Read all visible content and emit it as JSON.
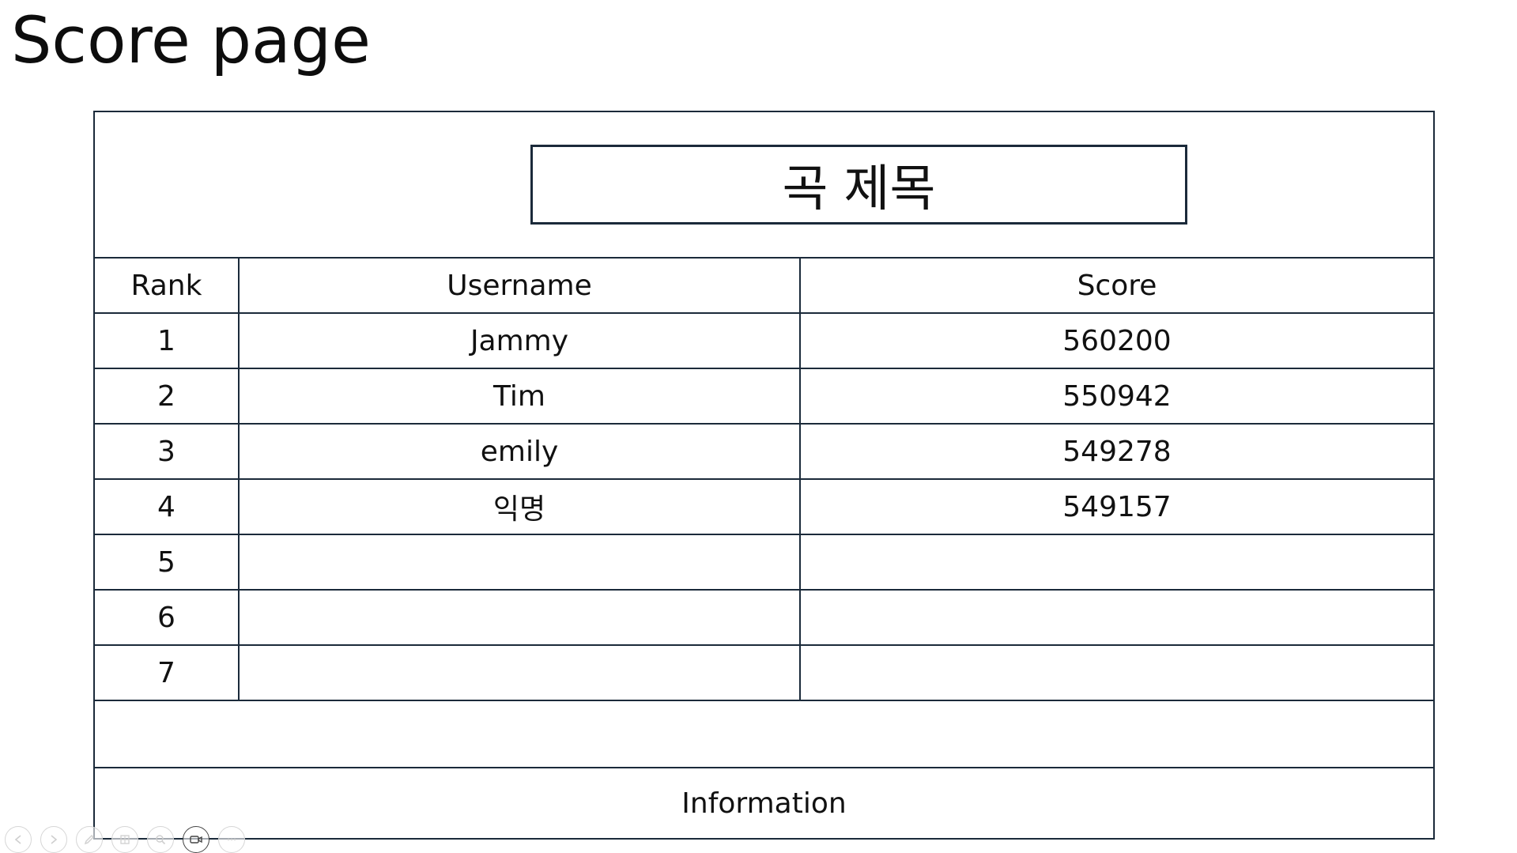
{
  "page_title": "Score page",
  "song_title": "곡 제목",
  "table": {
    "headers": [
      "Rank",
      "Username",
      "Score"
    ],
    "rows": [
      {
        "rank": "1",
        "username": "Jammy",
        "score": "560200"
      },
      {
        "rank": "2",
        "username": "Tim",
        "score": "550942"
      },
      {
        "rank": "3",
        "username": "emily",
        "score": "549278"
      },
      {
        "rank": "4",
        "username": "익명",
        "score": "549157"
      },
      {
        "rank": "5",
        "username": "",
        "score": ""
      },
      {
        "rank": "6",
        "username": "",
        "score": ""
      },
      {
        "rank": "7",
        "username": "",
        "score": ""
      }
    ]
  },
  "information_label": "Information",
  "toolbar": {
    "buttons": [
      {
        "icon": "previous-arrow-icon",
        "active": false
      },
      {
        "icon": "next-arrow-icon",
        "active": false
      },
      {
        "icon": "pen-icon",
        "active": false
      },
      {
        "icon": "slides-grid-icon",
        "active": false
      },
      {
        "icon": "zoom-magnifier-icon",
        "active": false
      },
      {
        "icon": "camera-icon",
        "active": true
      },
      {
        "icon": "more-options-icon",
        "active": false
      }
    ]
  },
  "colors": {
    "border": "#1b2a3a",
    "text": "#111111",
    "background": "#ffffff",
    "toolbar_inactive": "#d6d6d6",
    "toolbar_active": "#444444"
  }
}
